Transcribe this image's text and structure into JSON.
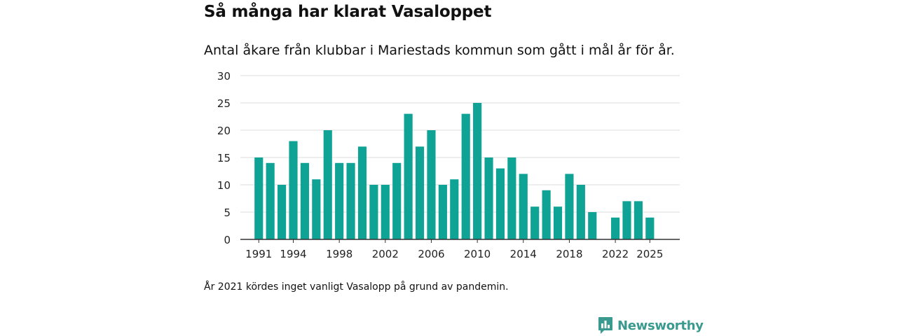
{
  "header": {
    "title": "Så många har klarat Vasaloppet",
    "subtitle": "Antal åkare från klubbar i Mariestads kommun som gått i mål år för år."
  },
  "footnote": "År 2021 kördes inget vanligt Vasalopp på grund av pandemin.",
  "brand": {
    "name": "Newsworthy",
    "logo_icon": "bar-chart-speech-bubble-icon",
    "color": "#3a9a8f"
  },
  "colors": {
    "bar": "#0fa396",
    "grid": "#dcdcdc",
    "axis": "#333333"
  },
  "chart_data": {
    "type": "bar",
    "title": "Så många har klarat Vasaloppet",
    "subtitle": "Antal åkare från klubbar i Mariestads kommun som gått i mål år för år.",
    "xlabel": "",
    "ylabel": "",
    "ylim": [
      0,
      30
    ],
    "yticks": [
      0,
      5,
      10,
      15,
      20,
      25,
      30
    ],
    "grid": true,
    "x": [
      1991,
      1992,
      1993,
      1994,
      1995,
      1996,
      1997,
      1998,
      1999,
      2000,
      2001,
      2002,
      2003,
      2004,
      2005,
      2006,
      2007,
      2008,
      2009,
      2010,
      2011,
      2012,
      2013,
      2014,
      2015,
      2016,
      2017,
      2018,
      2019,
      2020,
      2021,
      2022,
      2023,
      2024,
      2025
    ],
    "values": [
      15,
      14,
      10,
      18,
      14,
      11,
      20,
      14,
      14,
      17,
      10,
      10,
      14,
      23,
      17,
      20,
      10,
      11,
      23,
      25,
      15,
      13,
      15,
      12,
      6,
      9,
      6,
      12,
      10,
      5,
      null,
      4,
      7,
      7,
      4
    ],
    "xticks": [
      1991,
      1994,
      1998,
      2002,
      2006,
      2010,
      2014,
      2018,
      2022,
      2025
    ]
  }
}
